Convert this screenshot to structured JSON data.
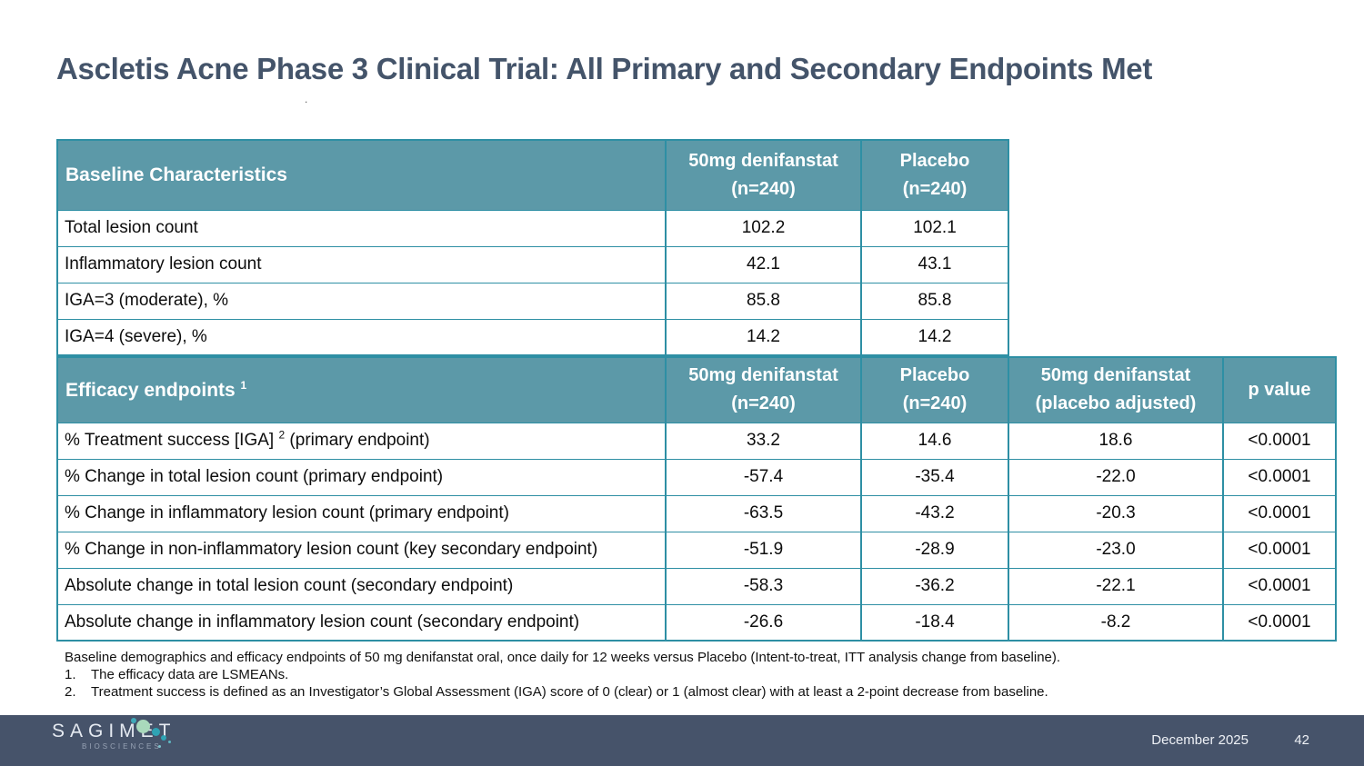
{
  "title": "Ascletis Acne Phase 3 Clinical Trial: All Primary and Secondary Endpoints Met",
  "stray_mark": ".",
  "colors": {
    "title_text": "#44546a",
    "table_header_fill": "#5c99a8",
    "table_border": "#2e8fa4",
    "footer_background": "#46536a",
    "logo_dot_green": "#a9d9bc",
    "logo_dot_teal": "#2fa3b4"
  },
  "baseline_table": {
    "headers": [
      "Baseline Characteristics",
      "50mg denifanstat\n(n=240)",
      "Placebo\n(n=240)"
    ],
    "rows": [
      {
        "label": "Total lesion count",
        "values": [
          "102.2",
          "102.1"
        ]
      },
      {
        "label": "Inflammatory lesion count",
        "values": [
          "42.1",
          "43.1"
        ]
      },
      {
        "label": "IGA=3 (moderate), %",
        "values": [
          "85.8",
          "85.8"
        ]
      },
      {
        "label": "IGA=4 (severe), %",
        "values": [
          "14.2",
          "14.2"
        ]
      }
    ]
  },
  "efficacy_table": {
    "headers": [
      {
        "text": "Efficacy endpoints ",
        "sup": "1"
      },
      {
        "text": "50mg denifanstat\n(n=240)",
        "sup": ""
      },
      {
        "text": "Placebo\n(n=240)",
        "sup": ""
      },
      {
        "text": "50mg denifanstat\n(placebo adjusted)",
        "sup": ""
      },
      {
        "text": "p value",
        "sup": ""
      }
    ],
    "rows": [
      {
        "label_pre": "% Treatment success [IGA] ",
        "sup": "2",
        "label_post": " (primary endpoint)",
        "values": [
          "33.2",
          "14.6",
          "18.6",
          "<0.0001"
        ]
      },
      {
        "label_pre": "% Change in total lesion count (primary endpoint)",
        "sup": "",
        "label_post": "",
        "values": [
          "-57.4",
          "-35.4",
          "-22.0",
          "<0.0001"
        ]
      },
      {
        "label_pre": "% Change in inflammatory lesion count (primary endpoint)",
        "sup": "",
        "label_post": "",
        "values": [
          "-63.5",
          "-43.2",
          "-20.3",
          "<0.0001"
        ]
      },
      {
        "label_pre": "% Change in non-inflammatory lesion count (key secondary endpoint)",
        "sup": "",
        "label_post": "",
        "values": [
          "-51.9",
          "-28.9",
          "-23.0",
          "<0.0001"
        ]
      },
      {
        "label_pre": "Absolute change in total lesion count (secondary endpoint)",
        "sup": "",
        "label_post": "",
        "values": [
          "-58.3",
          "-36.2",
          "-22.1",
          "<0.0001"
        ]
      },
      {
        "label_pre": "Absolute change in inflammatory lesion count (secondary endpoint)",
        "sup": "",
        "label_post": "",
        "values": [
          "-26.6",
          "-18.4",
          "-8.2",
          "<0.0001"
        ]
      }
    ]
  },
  "footnotes": {
    "intro": "Baseline demographics and efficacy endpoints of 50 mg denifanstat oral, once daily for 12 weeks versus Placebo (Intent-to-treat, ITT analysis change from baseline).",
    "items": [
      {
        "num": "1.",
        "text": "The efficacy data are LSMEANs."
      },
      {
        "num": "2.",
        "text": "Treatment success is defined as an Investigator’s Global Assessment (IGA) score of 0 (clear) or 1 (almost clear) with at least a 2-point decrease from baseline."
      }
    ]
  },
  "footer": {
    "logo_name": "SAGIMET",
    "logo_sub": "BIOSCIENCES",
    "date": "December 2025",
    "page": "42"
  }
}
